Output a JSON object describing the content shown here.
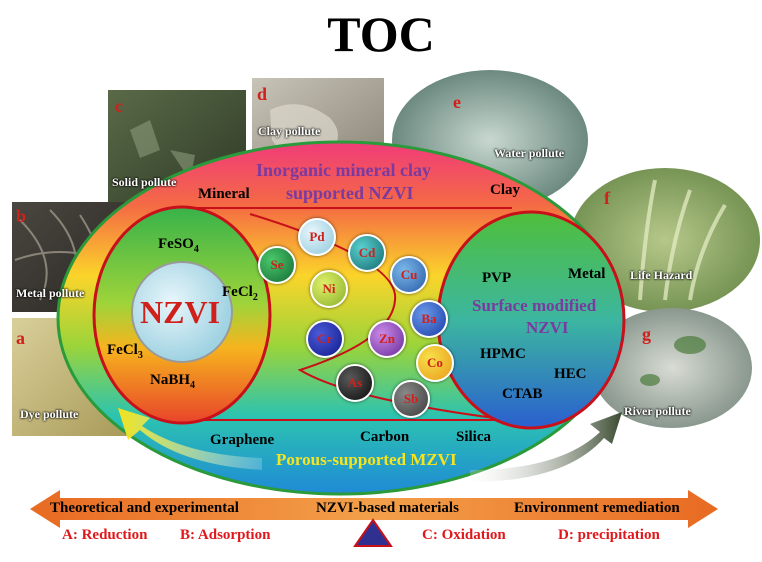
{
  "title": "TOC",
  "photos": {
    "a": {
      "letter": "a",
      "caption": "Dye pollute"
    },
    "b": {
      "letter": "b",
      "caption": "Metal pollute"
    },
    "c": {
      "letter": "c",
      "caption": "Solid pollute"
    },
    "d": {
      "letter": "d",
      "caption": "Clay pollute"
    },
    "e": {
      "letter": "e",
      "caption": "Water pollute"
    },
    "f": {
      "letter": "f",
      "caption": "Life Hazard"
    },
    "g": {
      "letter": "g",
      "caption": "River pollute"
    }
  },
  "top_band": {
    "line1": "Inorganic  mineral  clay",
    "line2": "supported  NZVI",
    "left": "Mineral",
    "right": "Clay"
  },
  "left_circle": {
    "core": "NZVI",
    "fe_so4": "FeSO",
    "fe_so4_sub": "4",
    "fe_cl2": "FeCl",
    "fe_cl2_sub": "2",
    "fe_cl3": "FeCl",
    "fe_cl3_sub": "3",
    "nabh4": "NaBH",
    "nabh4_sub": "4"
  },
  "right_circle": {
    "pvp": "PVP",
    "metal": "Metal",
    "title1": "Surface modified",
    "title2": "NZVI",
    "hpmc": "HPMC",
    "hec": "HEC",
    "ctab": "CTAB"
  },
  "bottom_band": {
    "graphene": "Graphene",
    "carbon": "Carbon",
    "silica": "Silica",
    "title": "Porous-supported  MZVI"
  },
  "metals": {
    "pd": "Pd",
    "cd": "Cd",
    "se": "Se",
    "cu": "Cu",
    "ni": "Ni",
    "ba": "Ba",
    "cr": "Cr",
    "zn": "Zn",
    "co": "Co",
    "as": "As",
    "sb": "Sb"
  },
  "arrow": {
    "left": "Theoretical and experimental",
    "center": "NZVI-based materials",
    "right": "Environment remediation"
  },
  "mechanisms": {
    "a": "A: Reduction",
    "b": "B: Adsorption",
    "c": "C: Oxidation",
    "d": "D:  precipitation"
  },
  "colors": {
    "red_text": "#d0201b",
    "purple_text": "#7a3aa0",
    "band_pink": "#f0506a",
    "band_cyan": "#23c0d0",
    "arrow_orange": "#e87722",
    "triangle": "#303090"
  }
}
